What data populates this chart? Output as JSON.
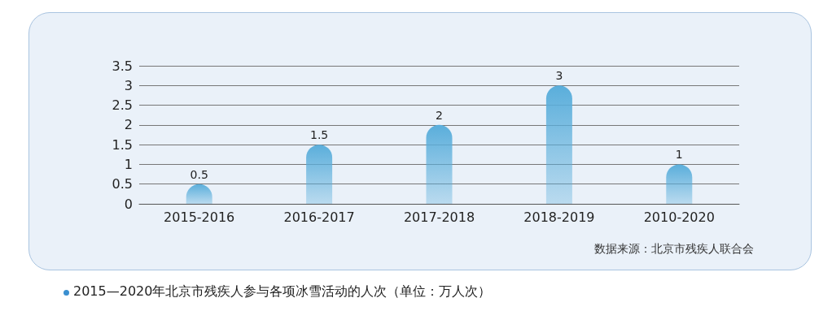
{
  "chart_data": {
    "type": "bar",
    "title": "2015—2020年北京市残疾人参与各项冰雪活动的人次（单位：万人次）",
    "categories": [
      "2015-2016",
      "2016-2017",
      "2017-2018",
      "2018-2019",
      "2010-2020"
    ],
    "values": [
      0.5,
      1.5,
      2,
      3,
      1
    ],
    "color": "#5aaedb",
    "ylim": [
      0,
      3.5
    ],
    "yticks": [
      0,
      0.5,
      1,
      1.5,
      2,
      2.5,
      3,
      3.5
    ],
    "grid": "y",
    "data_labels": true,
    "annotations": [
      "数据来源：北京市残疾人联合会"
    ]
  }
}
